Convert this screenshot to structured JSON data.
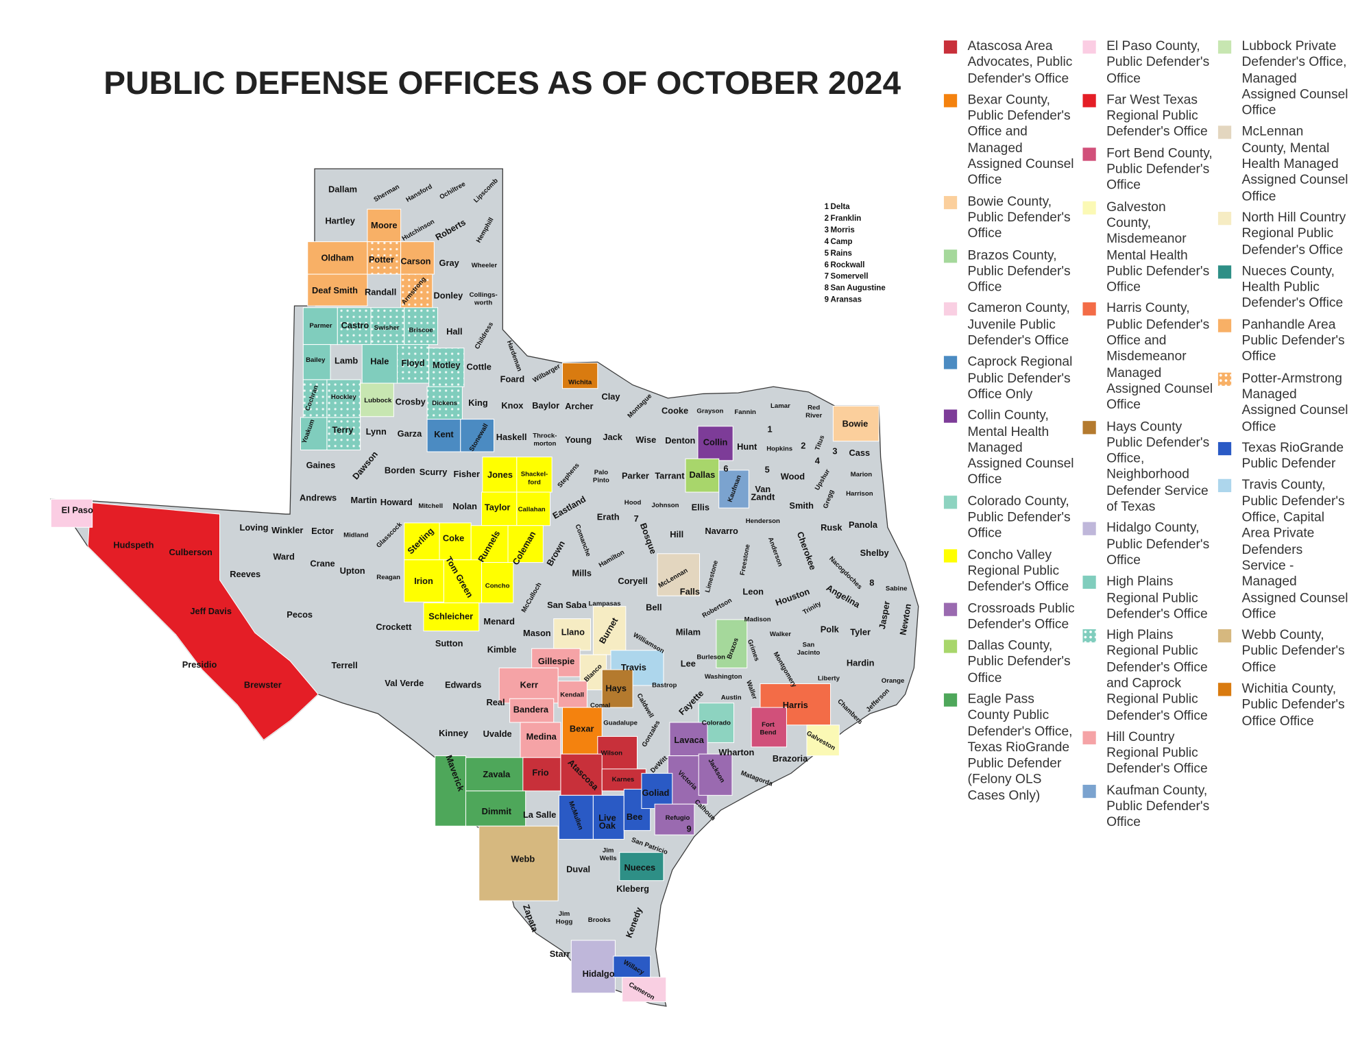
{
  "title": "PUBLIC DEFENSE OFFICES AS OF OCTOBER 2024",
  "key": [
    {
      "number": "1",
      "name": "Delta"
    },
    {
      "number": "2",
      "name": "Franklin"
    },
    {
      "number": "3",
      "name": "Morris"
    },
    {
      "number": "4",
      "name": "Camp"
    },
    {
      "number": "5",
      "name": "Rains"
    },
    {
      "number": "6",
      "name": "Rockwall"
    },
    {
      "number": "7",
      "name": "Somervell"
    },
    {
      "number": "8",
      "name": "San Augustine"
    },
    {
      "number": "9",
      "name": "Aransas"
    }
  ],
  "legend": [
    {
      "label": "Atascosa Area Advocates, Public Defender's Office",
      "color": "#c8303a"
    },
    {
      "label": "Bexar County, Public Defender's Office and Managed Assigned Counsel Office",
      "color": "#f4820e"
    },
    {
      "label": "Bowie County, Public Defender's Office",
      "color": "#fbcf9c"
    },
    {
      "label": "Brazos County, Public Defender's Office",
      "color": "#a5d89b"
    },
    {
      "label": "Cameron County, Juvenile Public Defender's Office",
      "color": "#f9cfe2"
    },
    {
      "label": "Caprock Regional Public Defender's Office Only",
      "color": "#4b8bc2"
    },
    {
      "label": "Collin County, Mental Health Managed Assigned Counsel Office",
      "color": "#7d3c98"
    },
    {
      "label": "Colorado County, Public Defender's Office",
      "color": "#8dd3c0"
    },
    {
      "label": "Concho Valley Regional Public Defender's Office",
      "color": "#ffff00"
    },
    {
      "label": "Crossroads Public Defender's Office",
      "color": "#9a6ab0"
    },
    {
      "label": "Dallas County, Public Defender's Office",
      "color": "#a8d66b"
    },
    {
      "label": "Eagle Pass County Public Defender's Office, Texas RioGrande Public Defender (Felony OLS Cases Only)",
      "color": "#4ea75a"
    },
    {
      "label": "El Paso County, Public Defender's Office",
      "color": "#fbcde3"
    },
    {
      "label": "Far West Texas Regional Public Defender's Office",
      "color": "#e41e26"
    },
    {
      "label": "Fort Bend County, Public Defender's Office",
      "color": "#d1507a"
    },
    {
      "label": "Galveston County, Misdemeanor Mental Health Public Defender's Office",
      "color": "#fbf9b5"
    },
    {
      "label": "Harris County, Public Defender's Office and Misdemeanor Managed Assigned Counsel Office",
      "color": "#f36c47"
    },
    {
      "label": "Hays County Public Defender's Office, Neighborhood Defender Service of Texas",
      "color": "#b47a2e"
    },
    {
      "label": "Hidalgo County, Public Defender's Office",
      "color": "#bfb7da"
    },
    {
      "label": "High Plains Regional Public Defender's Office",
      "color": "#80cdbd"
    },
    {
      "label": "High Plains Regional Public Defender's Office and Caprock Regional Public Defender's Office",
      "color": "#80cdbd",
      "pattern": "dots"
    },
    {
      "label": "Hill Country Regional Public Defender's Office",
      "color": "#f5a3a6"
    },
    {
      "label": "Kaufman County, Public Defender's Office",
      "color": "#7ba3cf"
    },
    {
      "label": "Lubbock Private Defender's Office, Managed Assigned Counsel Office",
      "color": "#c7e6b1"
    },
    {
      "label": "McLennan County, Mental Health Managed Assigned Counsel Office",
      "color": "#e3d6bf"
    },
    {
      "label": "North Hill Country Regional Public Defender's Office",
      "color": "#f6ecc3"
    },
    {
      "label": "Nueces County, Health Public Defender's Office",
      "color": "#2e8f86"
    },
    {
      "label": "Panhandle Area Public Defender's Office",
      "color": "#f8b066"
    },
    {
      "label": "Potter-Armstrong Managed Assigned Counsel Office",
      "color": "#f8b066",
      "pattern": "dots"
    },
    {
      "label": "Texas RioGrande Public Defender",
      "color": "#2a5ac5"
    },
    {
      "label": "Travis County, Public Defender's Office,  Capital Area Private Defenders Service - Managed Assigned Counsel Office",
      "color": "#add6ec"
    },
    {
      "label": "Webb County, Public Defender's Office",
      "color": "#d6b87f"
    },
    {
      "label": "Wichitia County, Public Defender's Office Office",
      "color": "#d97b10"
    }
  ],
  "counties": [
    {
      "name": "Dallam"
    },
    {
      "name": "Sherman"
    },
    {
      "name": "Hansford"
    },
    {
      "name": "Ochiltree"
    },
    {
      "name": "Lipscomb"
    },
    {
      "name": "Hartley"
    },
    {
      "name": "Moore",
      "color": "#f8b066"
    },
    {
      "name": "Hutchinson"
    },
    {
      "name": "Roberts"
    },
    {
      "name": "Hemphill"
    },
    {
      "name": "Oldham",
      "color": "#f8b066"
    },
    {
      "name": "Potter",
      "color": "#f8b066",
      "pattern": "dots"
    },
    {
      "name": "Carson",
      "color": "#f8b066"
    },
    {
      "name": "Gray"
    },
    {
      "name": "Wheeler"
    },
    {
      "name": "Deaf Smith",
      "color": "#f8b066"
    },
    {
      "name": "Randall"
    },
    {
      "name": "Armstrong",
      "color": "#f8b066",
      "pattern": "dots"
    },
    {
      "name": "Donley"
    },
    {
      "name": "Collings-\nworth"
    },
    {
      "name": "Parmer",
      "color": "#80cdbd"
    },
    {
      "name": "Castro",
      "color": "#80cdbd",
      "pattern": "dots"
    },
    {
      "name": "Swisher",
      "color": "#80cdbd",
      "pattern": "dots"
    },
    {
      "name": "Briscoe",
      "color": "#80cdbd",
      "pattern": "dots"
    },
    {
      "name": "Hall"
    },
    {
      "name": "Childress"
    },
    {
      "name": "Bailey",
      "color": "#80cdbd"
    },
    {
      "name": "Lamb"
    },
    {
      "name": "Hale",
      "color": "#80cdbd"
    },
    {
      "name": "Floyd",
      "color": "#80cdbd",
      "pattern": "dots"
    },
    {
      "name": "Motley",
      "color": "#80cdbd",
      "pattern": "dots"
    },
    {
      "name": "Cottle"
    },
    {
      "name": "Hardeman"
    },
    {
      "name": "Foard"
    },
    {
      "name": "Wilbarger"
    },
    {
      "name": "Wichita",
      "color": "#d97b10"
    },
    {
      "name": "Cochran",
      "color": "#80cdbd",
      "pattern": "dots"
    },
    {
      "name": "Hockley",
      "color": "#80cdbd",
      "pattern": "dots"
    },
    {
      "name": "Lubbock",
      "color": "#c7e6b1"
    },
    {
      "name": "Crosby"
    },
    {
      "name": "Dickens",
      "color": "#80cdbd",
      "pattern": "dots"
    },
    {
      "name": "King"
    },
    {
      "name": "Knox"
    },
    {
      "name": "Baylor"
    },
    {
      "name": "Archer"
    },
    {
      "name": "Clay"
    },
    {
      "name": "Montague"
    },
    {
      "name": "Cooke"
    },
    {
      "name": "Grayson"
    },
    {
      "name": "Fannin"
    },
    {
      "name": "Lamar"
    },
    {
      "name": "Red\nRiver"
    },
    {
      "name": "Bowie",
      "color": "#fbcf9c"
    },
    {
      "name": "Yoakum",
      "color": "#80cdbd"
    },
    {
      "name": "Terry",
      "color": "#80cdbd",
      "pattern": "dots"
    },
    {
      "name": "Lynn"
    },
    {
      "name": "Garza"
    },
    {
      "name": "Kent",
      "color": "#4b8bc2"
    },
    {
      "name": "Stonewall",
      "color": "#4b8bc2"
    },
    {
      "name": "Haskell"
    },
    {
      "name": "Throck-\nmorton"
    },
    {
      "name": "Young"
    },
    {
      "name": "Jack"
    },
    {
      "name": "Wise"
    },
    {
      "name": "Denton"
    },
    {
      "name": "Collin",
      "color": "#7d3c98"
    },
    {
      "name": "Hunt"
    },
    {
      "name": "Hopkins"
    },
    {
      "name": "Titus"
    },
    {
      "name": "Cass"
    },
    {
      "name": "Gaines"
    },
    {
      "name": "Dawson"
    },
    {
      "name": "Borden"
    },
    {
      "name": "Scurry"
    },
    {
      "name": "Fisher"
    },
    {
      "name": "Jones",
      "color": "#ffff00"
    },
    {
      "name": "Shackel-\nford",
      "color": "#ffff00"
    },
    {
      "name": "Stephens"
    },
    {
      "name": "Palo\nPinto"
    },
    {
      "name": "Parker"
    },
    {
      "name": "Tarrant"
    },
    {
      "name": "Dallas",
      "color": "#a8d66b"
    },
    {
      "name": "Kaufman",
      "color": "#7ba3cf"
    },
    {
      "name": "Van\nZandt"
    },
    {
      "name": "Wood"
    },
    {
      "name": "Upshur"
    },
    {
      "name": "Marion"
    },
    {
      "name": "Harrison"
    },
    {
      "name": "Andrews"
    },
    {
      "name": "Martin"
    },
    {
      "name": "Howard"
    },
    {
      "name": "Mitchell"
    },
    {
      "name": "Nolan"
    },
    {
      "name": "Taylor",
      "color": "#ffff00"
    },
    {
      "name": "Callahan",
      "color": "#ffff00"
    },
    {
      "name": "Eastland"
    },
    {
      "name": "Erath"
    },
    {
      "name": "Hood"
    },
    {
      "name": "Johnson"
    },
    {
      "name": "Ellis"
    },
    {
      "name": "Henderson"
    },
    {
      "name": "Smith"
    },
    {
      "name": "Gregg"
    },
    {
      "name": "Rusk"
    },
    {
      "name": "Panola"
    },
    {
      "name": "Loving"
    },
    {
      "name": "Winkler"
    },
    {
      "name": "Ector"
    },
    {
      "name": "Midland"
    },
    {
      "name": "Glasscock"
    },
    {
      "name": "Sterling",
      "color": "#ffff00"
    },
    {
      "name": "Coke",
      "color": "#ffff00"
    },
    {
      "name": "Runnels",
      "color": "#ffff00"
    },
    {
      "name": "Coleman",
      "color": "#ffff00"
    },
    {
      "name": "Brown"
    },
    {
      "name": "Comanche"
    },
    {
      "name": "Bosque"
    },
    {
      "name": "Hill"
    },
    {
      "name": "Navarro"
    },
    {
      "name": "Freestone"
    },
    {
      "name": "Anderson"
    },
    {
      "name": "Cherokee"
    },
    {
      "name": "Shelby"
    },
    {
      "name": "Nacogdoches"
    },
    {
      "name": "Culberson"
    },
    {
      "name": "Hudspeth"
    },
    {
      "name": "El Paso",
      "color": "#fbcde3"
    },
    {
      "name": "Ward"
    },
    {
      "name": "Crane"
    },
    {
      "name": "Upton"
    },
    {
      "name": "Reagan"
    },
    {
      "name": "Irion",
      "color": "#ffff00"
    },
    {
      "name": "Tom Green",
      "color": "#ffff00"
    },
    {
      "name": "Concho",
      "color": "#ffff00"
    },
    {
      "name": "McCulloch"
    },
    {
      "name": "Mills"
    },
    {
      "name": "Hamilton"
    },
    {
      "name": "Coryell"
    },
    {
      "name": "McLennan",
      "color": "#e3d6bf"
    },
    {
      "name": "Limestone"
    },
    {
      "name": "Leon"
    },
    {
      "name": "Houston"
    },
    {
      "name": "Angelina"
    },
    {
      "name": "Sabine"
    },
    {
      "name": "Reeves"
    },
    {
      "name": "Jeff Davis"
    },
    {
      "name": "Pecos"
    },
    {
      "name": "Crockett"
    },
    {
      "name": "San Saba"
    },
    {
      "name": "Lampasas"
    },
    {
      "name": "Burnet",
      "color": "#f6ecc3"
    },
    {
      "name": "Bell"
    },
    {
      "name": "Falls"
    },
    {
      "name": "Robertson"
    },
    {
      "name": "Madison"
    },
    {
      "name": "Trinity"
    },
    {
      "name": "Jasper"
    },
    {
      "name": "Newton"
    },
    {
      "name": "Schleicher",
      "color": "#ffff00"
    },
    {
      "name": "Menard"
    },
    {
      "name": "Mason"
    },
    {
      "name": "Llano",
      "color": "#f6ecc3"
    },
    {
      "name": "Williamson"
    },
    {
      "name": "Milam"
    },
    {
      "name": "Brazos",
      "color": "#a5d89b"
    },
    {
      "name": "Grimes"
    },
    {
      "name": "Walker"
    },
    {
      "name": "Polk"
    },
    {
      "name": "Tyler"
    },
    {
      "name": "San\nJacinto"
    },
    {
      "name": "Presidio"
    },
    {
      "name": "Brewster"
    },
    {
      "name": "Terrell"
    },
    {
      "name": "Sutton"
    },
    {
      "name": "Kimble"
    },
    {
      "name": "Gillespie",
      "color": "#f5a3a6"
    },
    {
      "name": "Blanco",
      "color": "#f6ecc3"
    },
    {
      "name": "Travis",
      "color": "#add6ec"
    },
    {
      "name": "Lee"
    },
    {
      "name": "Burleson"
    },
    {
      "name": "Washington"
    },
    {
      "name": "Waller"
    },
    {
      "name": "Montgomery"
    },
    {
      "name": "Liberty"
    },
    {
      "name": "Hardin"
    },
    {
      "name": "Orange"
    },
    {
      "name": "Jefferson"
    },
    {
      "name": "Harris",
      "color": "#f36c47"
    },
    {
      "name": "Chambers"
    },
    {
      "name": "Val Verde"
    },
    {
      "name": "Edwards"
    },
    {
      "name": "Kerr",
      "color": "#f5a3a6"
    },
    {
      "name": "Kendall",
      "color": "#f5a3a6"
    },
    {
      "name": "Hays",
      "color": "#b47a2e"
    },
    {
      "name": "Caldwell"
    },
    {
      "name": "Bastrop"
    },
    {
      "name": "Fayette"
    },
    {
      "name": "Austin"
    },
    {
      "name": "Real"
    },
    {
      "name": "Bandera",
      "color": "#f5a3a6"
    },
    {
      "name": "Comal"
    },
    {
      "name": "Guadalupe"
    },
    {
      "name": "Fort\nBend",
      "color": "#d1507a"
    },
    {
      "name": "Galveston",
      "color": "#fbf9b5"
    },
    {
      "name": "Colorado",
      "color": "#8dd3c0"
    },
    {
      "name": "Kinney"
    },
    {
      "name": "Uvalde"
    },
    {
      "name": "Medina",
      "color": "#f5a3a6"
    },
    {
      "name": "Bexar",
      "color": "#f4820e"
    },
    {
      "name": "Wilson",
      "color": "#c8303a"
    },
    {
      "name": "Gonzales"
    },
    {
      "name": "Lavaca",
      "color": "#9a6ab0"
    },
    {
      "name": "Wharton"
    },
    {
      "name": "Brazoria"
    },
    {
      "name": "Maverick",
      "color": "#4ea75a"
    },
    {
      "name": "Zavala",
      "color": "#4ea75a"
    },
    {
      "name": "Frio",
      "color": "#c8303a"
    },
    {
      "name": "Atascosa",
      "color": "#c8303a"
    },
    {
      "name": "Karnes",
      "color": "#c8303a"
    },
    {
      "name": "DeWitt"
    },
    {
      "name": "Victoria",
      "color": "#9a6ab0"
    },
    {
      "name": "Jackson",
      "color": "#9a6ab0"
    },
    {
      "name": "Matagorda"
    },
    {
      "name": "Dimmit",
      "color": "#4ea75a"
    },
    {
      "name": "La Salle"
    },
    {
      "name": "McMullen",
      "color": "#2a5ac5"
    },
    {
      "name": "Live\nOak",
      "color": "#2a5ac5"
    },
    {
      "name": "Bee",
      "color": "#2a5ac5"
    },
    {
      "name": "Goliad",
      "color": "#2a5ac5"
    },
    {
      "name": "Refugio",
      "color": "#9a6ab0"
    },
    {
      "name": "Calhoun"
    },
    {
      "name": "San Patricio"
    },
    {
      "name": "Jim\nWells"
    },
    {
      "name": "Nueces",
      "color": "#2e8f86"
    },
    {
      "name": "Webb",
      "color": "#d6b87f"
    },
    {
      "name": "Duval"
    },
    {
      "name": "Kleberg"
    },
    {
      "name": "Zapata"
    },
    {
      "name": "Jim\nHogg"
    },
    {
      "name": "Brooks"
    },
    {
      "name": "Kenedy"
    },
    {
      "name": "Starr"
    },
    {
      "name": "Hidalgo",
      "color": "#bfb7da"
    },
    {
      "name": "Willacy",
      "color": "#2a5ac5"
    },
    {
      "name": "Cameron",
      "color": "#f9cfe2"
    }
  ]
}
